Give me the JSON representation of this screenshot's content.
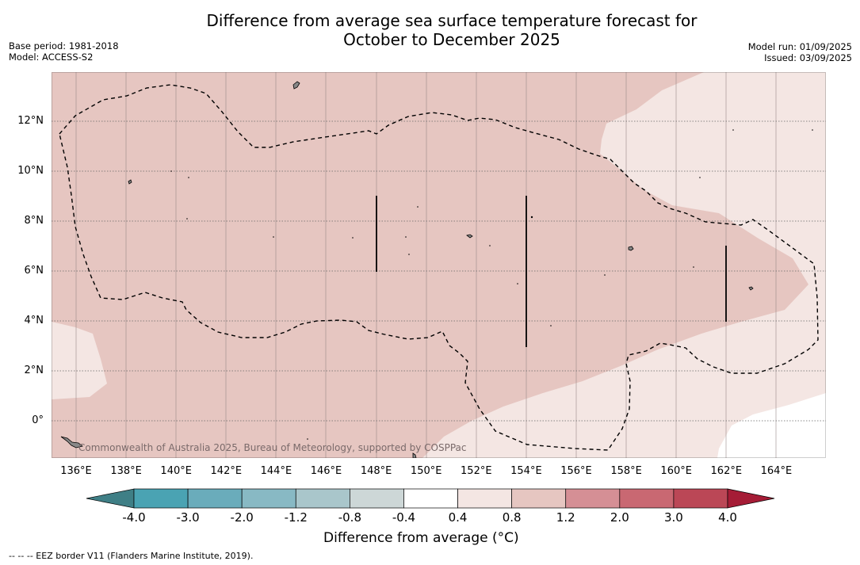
{
  "title_line1": "Difference from average sea surface temperature forecast for",
  "title_line2": "October to December 2025",
  "meta_left": {
    "base_period": "Base period: 1981-2018",
    "model": "Model: ACCESS-S2"
  },
  "meta_right": {
    "model_run": "Model run: 01/09/2025",
    "issued": "Issued: 03/09/2025"
  },
  "map": {
    "x_ticks": [
      "136°E",
      "138°E",
      "140°E",
      "142°E",
      "144°E",
      "146°E",
      "148°E",
      "150°E",
      "152°E",
      "154°E",
      "156°E",
      "158°E",
      "160°E",
      "162°E",
      "164°E"
    ],
    "y_ticks": [
      "12°N",
      "10°N",
      "8°N",
      "6°N",
      "4°N",
      "2°N",
      "0°"
    ],
    "copyright": "Commonwealth of Australia 2025, Bureau of Meteorology, supported by COSPPac",
    "fill_colors": {
      "warm_0_4_to_0_8": "#f4e6e3",
      "warm_0_8_to_1_2": "#e6c6c1"
    }
  },
  "colorbar": {
    "labels": [
      "-4.0",
      "-3.0",
      "-2.0",
      "-1.2",
      "-0.8",
      "-0.4",
      "0.4",
      "0.8",
      "1.2",
      "2.0",
      "3.0",
      "4.0"
    ],
    "colors": [
      "#4aa3b3",
      "#6aacbb",
      "#88b9c4",
      "#a9c6cb",
      "#cdd7d7",
      "#ffffff",
      "#f4e6e3",
      "#e6c6c1",
      "#d58f95",
      "#c96872",
      "#bb4756"
    ],
    "low_extend_color": "#3f7f86",
    "high_extend_color": "#a51c36",
    "title": "Difference from average (°C)"
  },
  "footnote": "--  --  -- EEZ border V11 (Flanders Marine Institute, 2019)."
}
